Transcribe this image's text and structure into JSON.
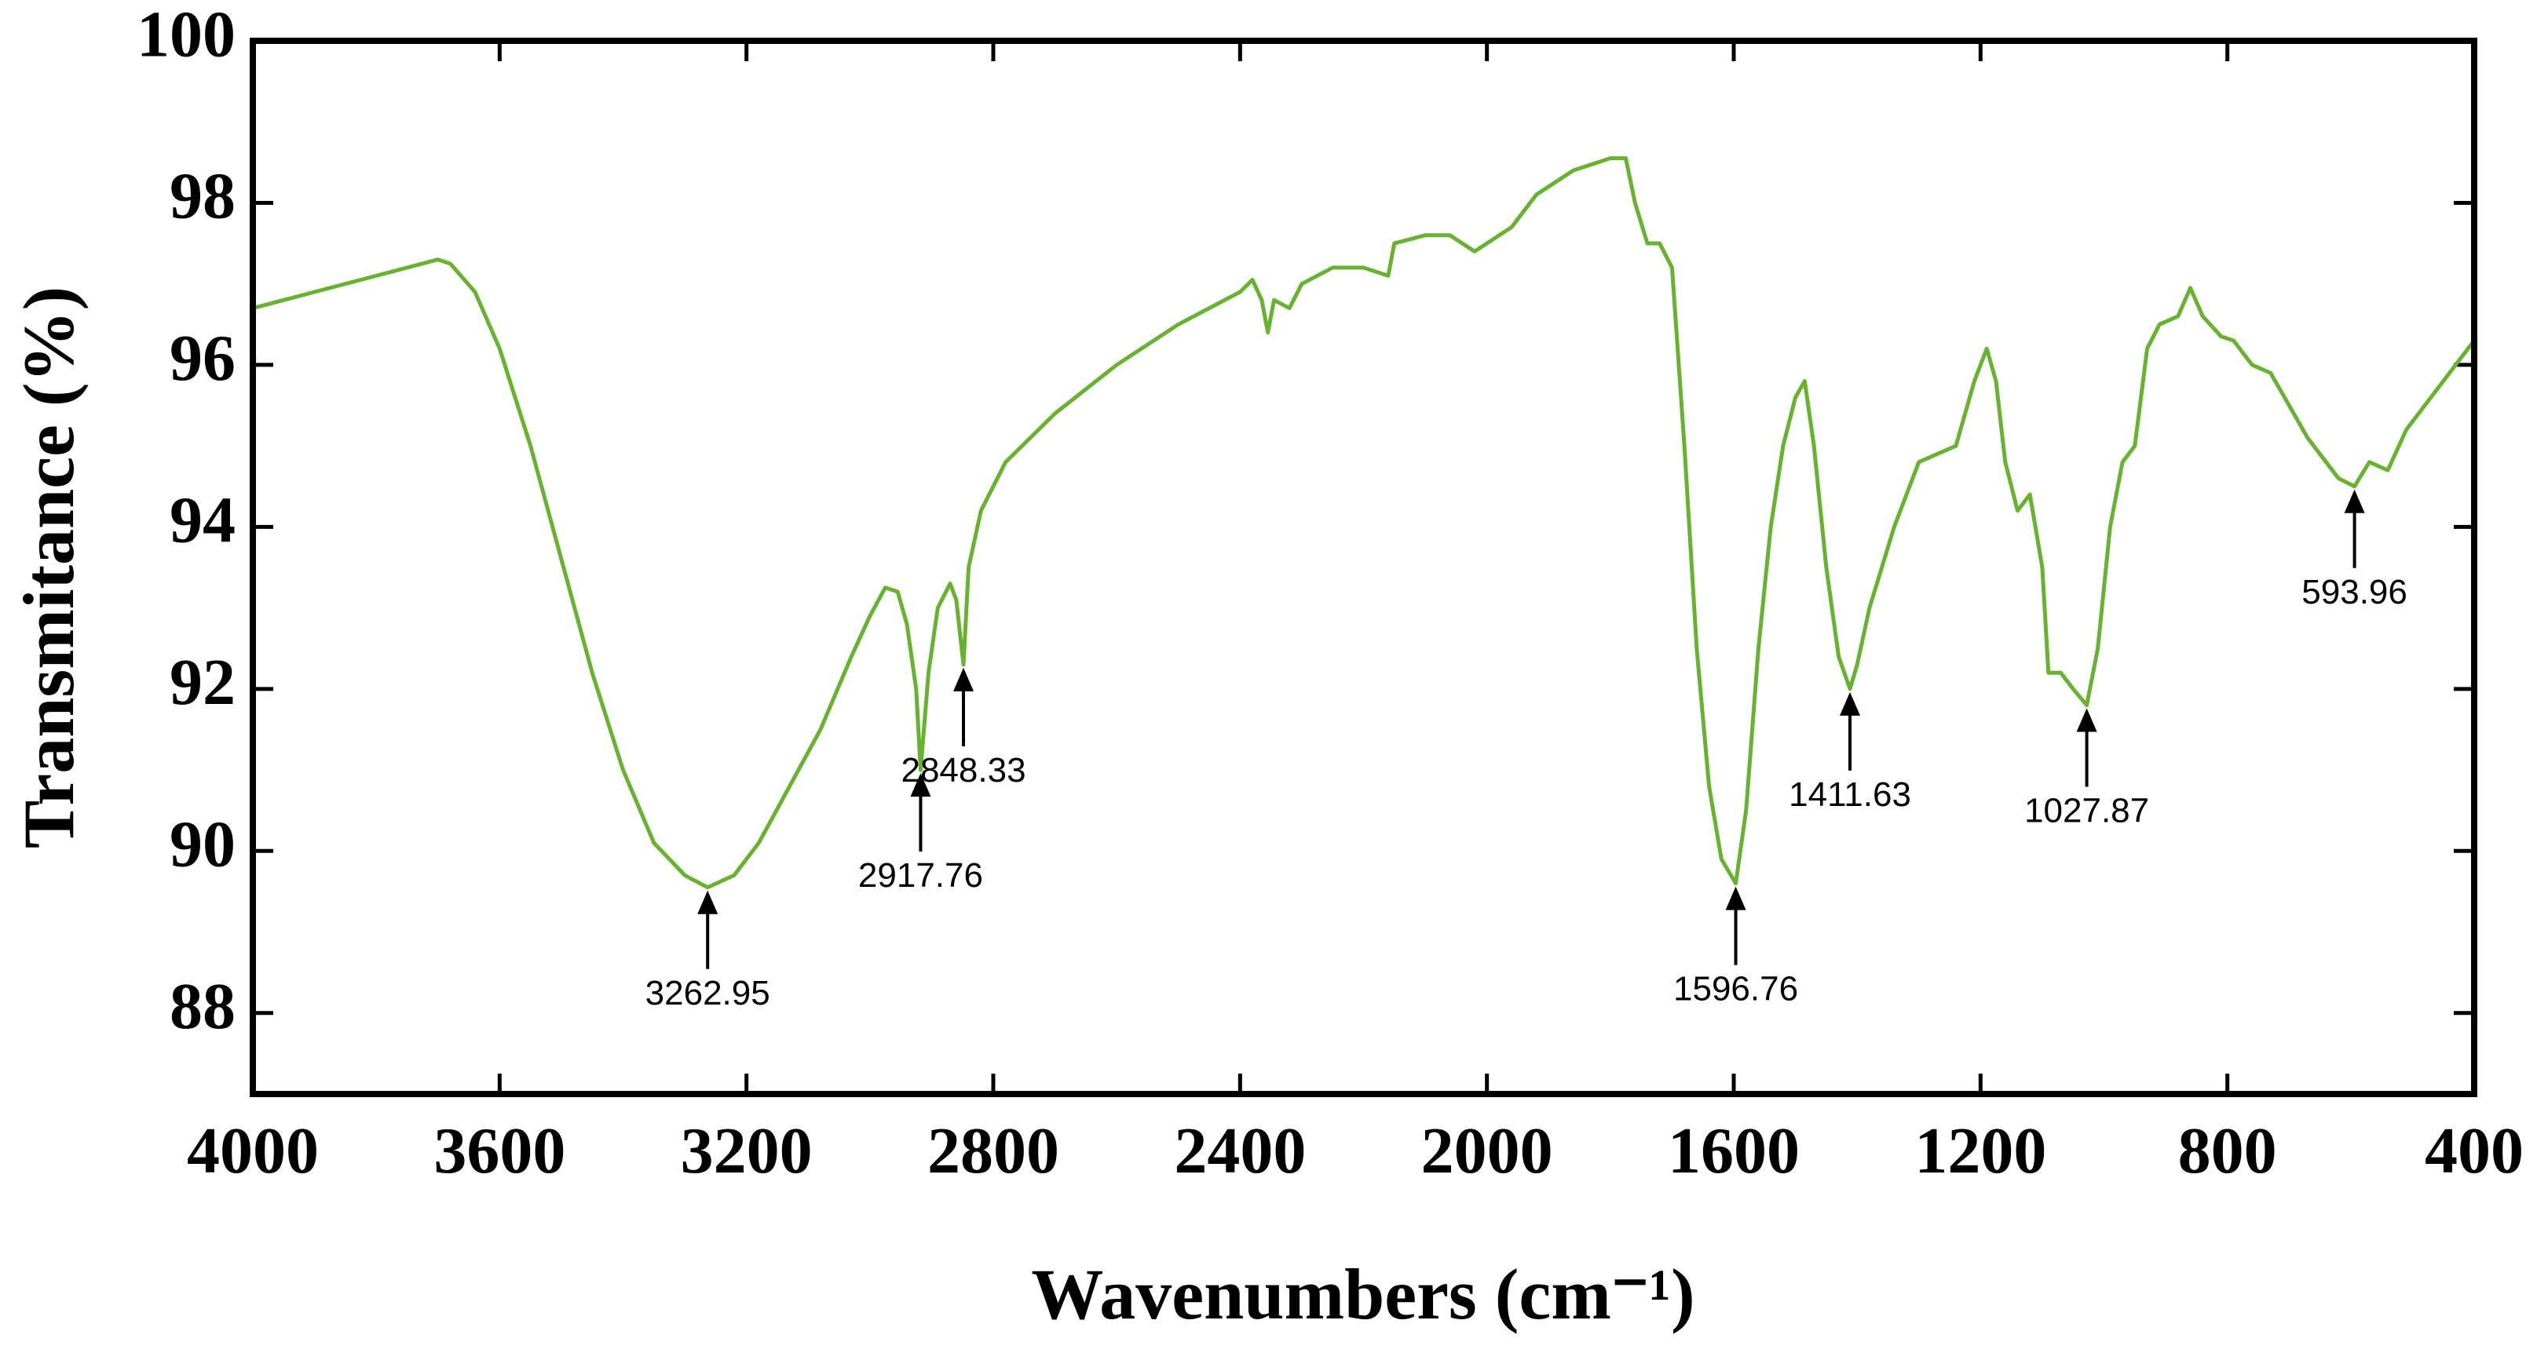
{
  "chart_data": {
    "type": "line",
    "xlabel": "Wavenumbers (cm⁻¹)",
    "ylabel": "Transmitance (%)",
    "xlim": [
      4000,
      400
    ],
    "ylim": [
      87,
      100
    ],
    "xticks": [
      4000,
      3600,
      3200,
      2800,
      2400,
      2000,
      1600,
      1200,
      800,
      400
    ],
    "yticks": [
      88,
      90,
      92,
      94,
      96,
      98,
      100
    ],
    "series": [
      {
        "color": "#67b330",
        "x": [
          4000,
          3900,
          3800,
          3700,
          3680,
          3640,
          3600,
          3550,
          3500,
          3450,
          3400,
          3350,
          3300,
          3262.95,
          3220,
          3180,
          3130,
          3080,
          3030,
          3000,
          2975,
          2955,
          2940,
          2925,
          2917.76,
          2905,
          2890,
          2870,
          2860,
          2848.33,
          2840,
          2820,
          2780,
          2700,
          2600,
          2500,
          2400,
          2380,
          2365,
          2355,
          2345,
          2320,
          2300,
          2250,
          2200,
          2160,
          2150,
          2100,
          2060,
          2020,
          2000,
          1960,
          1920,
          1860,
          1800,
          1775,
          1760,
          1740,
          1720,
          1700,
          1680,
          1660,
          1640,
          1620,
          1596.76,
          1580,
          1560,
          1540,
          1520,
          1500,
          1485,
          1470,
          1450,
          1430,
          1411.63,
          1400,
          1380,
          1340,
          1300,
          1270,
          1240,
          1210,
          1190,
          1175,
          1160,
          1140,
          1120,
          1100,
          1090,
          1070,
          1050,
          1027.87,
          1010,
          990,
          970,
          950,
          930,
          910,
          880,
          860,
          840,
          810,
          790,
          760,
          730,
          700,
          670,
          640,
          620,
          593.96,
          570,
          540,
          510,
          470,
          430,
          400
        ],
        "values": [
          96.7,
          96.9,
          97.1,
          97.3,
          97.25,
          96.9,
          96.2,
          95.0,
          93.6,
          92.2,
          91.0,
          90.1,
          89.7,
          89.55,
          89.7,
          90.1,
          90.8,
          91.5,
          92.4,
          92.9,
          93.25,
          93.2,
          92.8,
          92.0,
          91.0,
          92.2,
          93.0,
          93.3,
          93.1,
          92.3,
          93.5,
          94.2,
          94.8,
          95.4,
          96.0,
          96.5,
          96.9,
          97.05,
          96.8,
          96.4,
          96.8,
          96.7,
          97.0,
          97.2,
          97.2,
          97.1,
          97.5,
          97.6,
          97.6,
          97.4,
          97.5,
          97.7,
          98.1,
          98.4,
          98.55,
          98.55,
          98.0,
          97.5,
          97.5,
          97.2,
          95.0,
          92.5,
          90.8,
          89.9,
          89.6,
          90.5,
          92.5,
          94.0,
          95.0,
          95.6,
          95.8,
          95.0,
          93.5,
          92.4,
          92.0,
          92.3,
          93.0,
          94.0,
          94.8,
          94.9,
          95.0,
          95.8,
          96.2,
          95.8,
          94.8,
          94.2,
          94.4,
          93.5,
          92.2,
          92.2,
          92.0,
          91.8,
          92.5,
          94.0,
          94.8,
          95.0,
          96.2,
          96.5,
          96.6,
          96.95,
          96.6,
          96.35,
          96.3,
          96.0,
          95.9,
          95.5,
          95.1,
          94.8,
          94.6,
          94.5,
          94.8,
          94.7,
          95.2,
          95.6,
          96.0,
          96.3
        ]
      }
    ],
    "annotations": [
      {
        "x": 3262.95,
        "y": 89.55
      },
      {
        "x": 2917.76,
        "y": 91.0
      },
      {
        "x": 2848.33,
        "y": 92.3
      },
      {
        "x": 1596.76,
        "y": 89.6
      },
      {
        "x": 1411.63,
        "y": 92.0
      },
      {
        "x": 1027.87,
        "y": 91.8
      },
      {
        "x": 593.96,
        "y": 94.5
      }
    ]
  }
}
